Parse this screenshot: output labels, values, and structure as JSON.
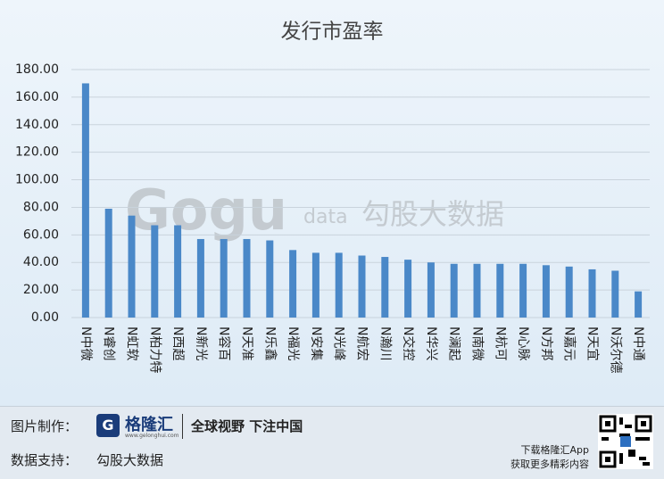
{
  "chart_data": {
    "type": "bar",
    "title": "发行市盈率",
    "categories": [
      "N中微",
      "N睿创",
      "N虹软",
      "N柏力特",
      "N西超",
      "N新光",
      "N容百",
      "N天准",
      "N乐鑫",
      "N福光",
      "N安集",
      "N光峰",
      "N航宏",
      "N瀚川",
      "N交控",
      "N华兴",
      "N澜起",
      "N南微",
      "N杭可",
      "N心脉",
      "N方邦",
      "N嘉元",
      "N天宜",
      "N沃尔德",
      "N中通"
    ],
    "values": [
      170,
      79,
      74,
      67,
      67,
      57,
      57,
      57,
      56,
      49,
      47,
      47,
      45,
      44,
      42,
      40,
      39,
      39,
      39,
      39,
      38,
      37,
      35,
      34,
      19
    ],
    "color": "#4a88c8",
    "ylim": [
      0,
      180
    ],
    "yticks": [
      {
        "value": 0,
        "label": "0.00"
      },
      {
        "value": 20,
        "label": "20.00"
      },
      {
        "value": 40,
        "label": "40.00"
      },
      {
        "value": 60,
        "label": "60.00"
      },
      {
        "value": 80,
        "label": "80.00"
      },
      {
        "value": 100,
        "label": "100.00"
      },
      {
        "value": 120,
        "label": "120.00"
      },
      {
        "value": 140,
        "label": "140.00"
      },
      {
        "value": 160,
        "label": "160.00"
      },
      {
        "value": 180,
        "label": "180.00"
      }
    ],
    "grid": true,
    "watermark": {
      "logo": "Gogu",
      "suffix": "data",
      "name": "勾股大数据"
    }
  },
  "footer": {
    "made_by_label": "图片制作：",
    "brand": "格隆汇",
    "brand_url": "www.gelonghui.com",
    "slogan": "全球视野 下注中国",
    "data_label": "数据支持：",
    "data_source": "勾股大数据",
    "download": "下载格隆汇App",
    "more": "获取更多精彩内容"
  }
}
